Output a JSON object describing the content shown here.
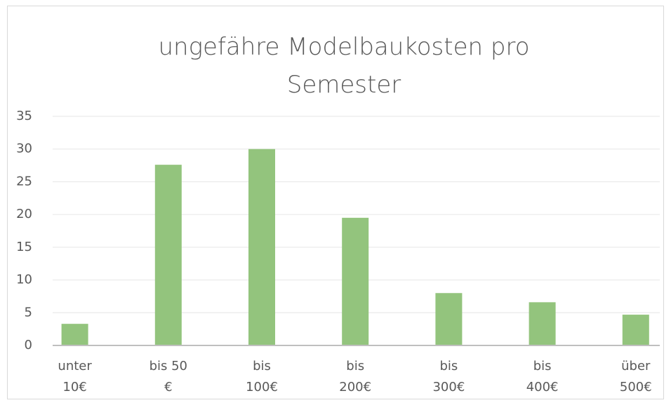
{
  "chart_data": {
    "type": "bar",
    "title": "ungefähre Modelbaukosten pro Semester",
    "categories": [
      "unter 10€",
      "bis 50 €",
      "bis 100€",
      "bis 200€",
      "bis 300€",
      "bis 400€",
      "über 500€"
    ],
    "values": [
      3.3,
      27.6,
      30,
      19.5,
      8,
      6.6,
      4.7
    ],
    "color": "#93c47d",
    "ylim": [
      0,
      35
    ],
    "yticks": [
      0,
      5,
      10,
      15,
      20,
      25,
      30,
      35
    ],
    "grid": true
  }
}
